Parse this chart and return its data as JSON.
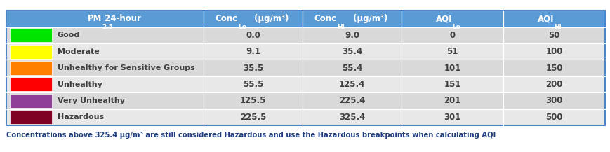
{
  "rows": [
    {
      "label": "Good",
      "color": "#00e400",
      "conc_lo": "0.0",
      "conc_hi": "9.0",
      "aqi_lo": "0",
      "aqi_hi": "50"
    },
    {
      "label": "Moderate",
      "color": "#ffff00",
      "conc_lo": "9.1",
      "conc_hi": "35.4",
      "aqi_lo": "51",
      "aqi_hi": "100"
    },
    {
      "label": "Unhealthy for Sensitive Groups",
      "color": "#ff7e00",
      "conc_lo": "35.5",
      "conc_hi": "55.4",
      "aqi_lo": "101",
      "aqi_hi": "150"
    },
    {
      "label": "Unhealthy",
      "color": "#ff0000",
      "conc_lo": "55.5",
      "conc_hi": "125.4",
      "aqi_lo": "151",
      "aqi_hi": "200"
    },
    {
      "label": "Very Unhealthy",
      "color": "#8f3f97",
      "conc_lo": "125.5",
      "conc_hi": "225.4",
      "aqi_lo": "201",
      "aqi_hi": "300"
    },
    {
      "label": "Hazardous",
      "color": "#7e0023",
      "conc_lo": "225.5",
      "conc_hi": "325.4",
      "aqi_lo": "301",
      "aqi_hi": "500"
    }
  ],
  "header_bg": "#5b9bd5",
  "row_bg_alt": [
    "#d9d9d9",
    "#e8e8e8"
  ],
  "header_text_color": "#ffffff",
  "row_text_color": "#404040",
  "border_color": "#4a86c8",
  "footnote": "Concentrations above 325.4 μg/m³ are still considered Hazardous and use the Hazardous breakpoints when calculating AQI",
  "footnote_color": "#1f3d7a",
  "figsize": [
    8.69,
    2.17
  ],
  "dpi": 100
}
